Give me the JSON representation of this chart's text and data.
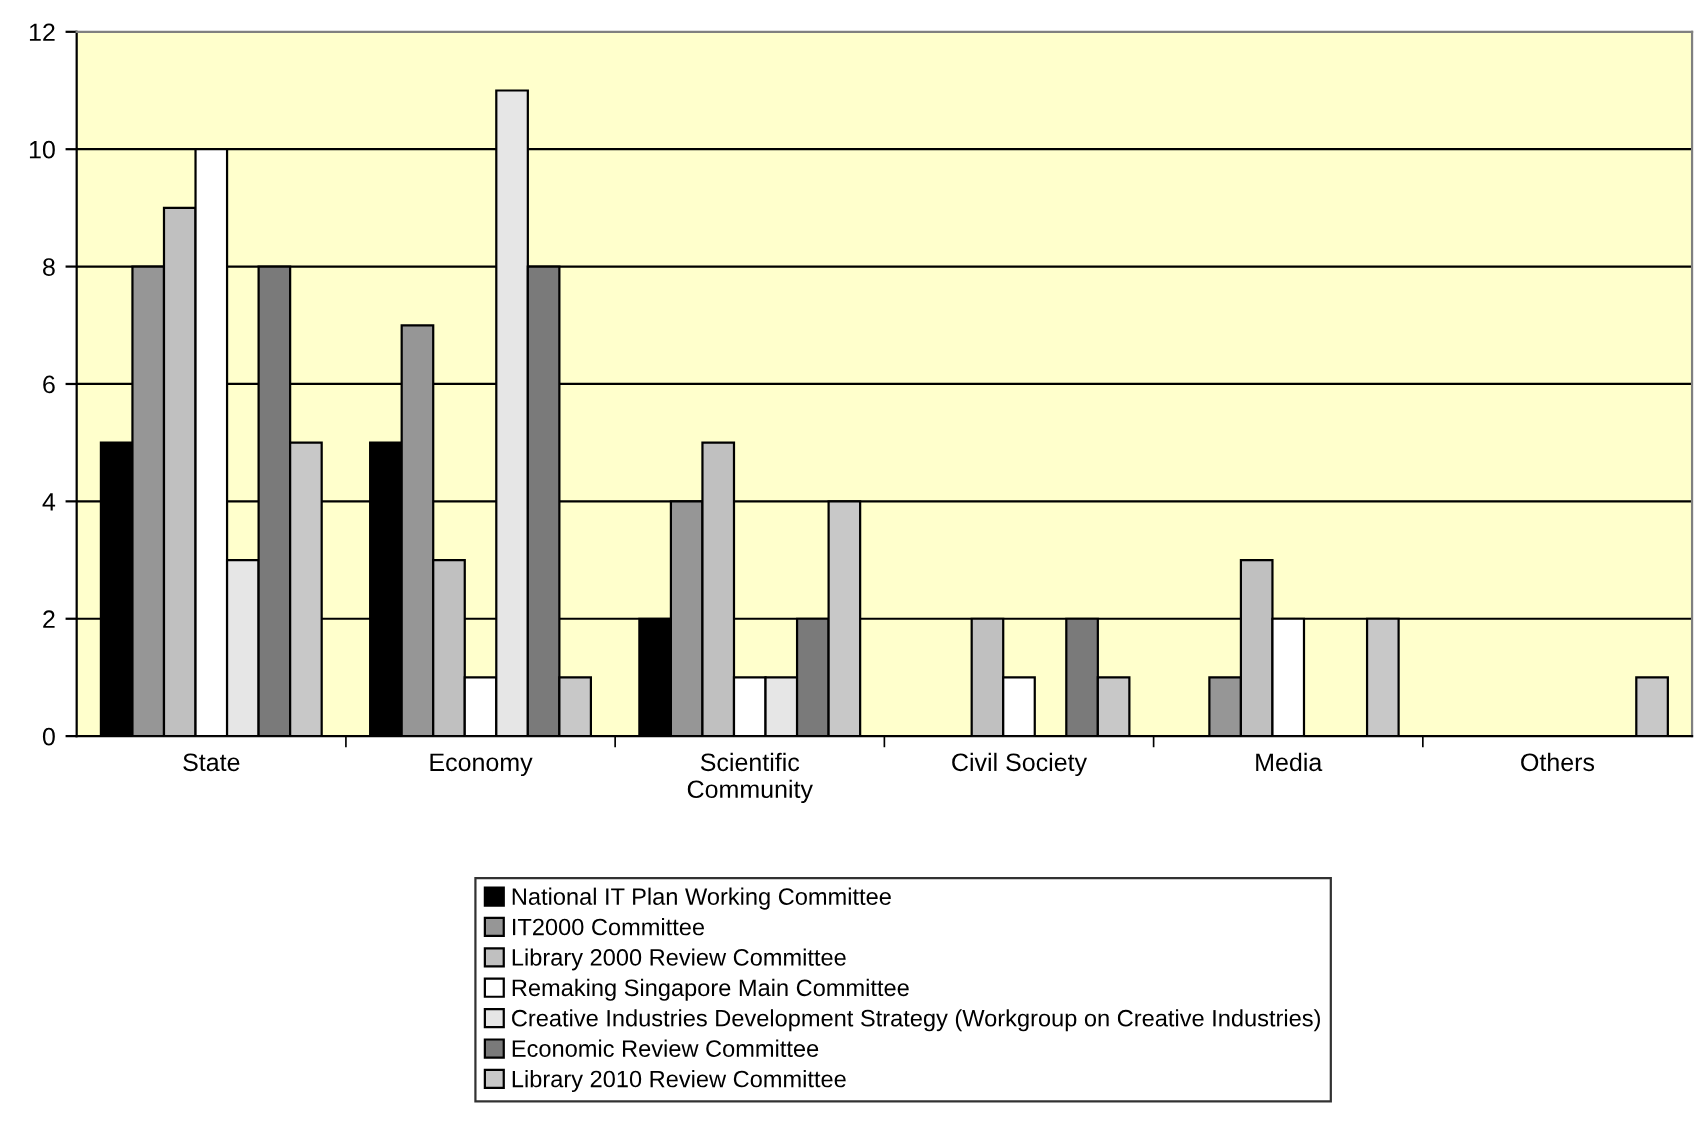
{
  "chart_data": {
    "type": "bar",
    "categories": [
      "State",
      "Economy",
      "Scientific Community",
      "Civil Society",
      "Media",
      "Others"
    ],
    "series": [
      {
        "name": "National IT Plan Working Committee",
        "color": "#000000",
        "values": [
          5,
          5,
          2,
          0,
          0,
          0
        ]
      },
      {
        "name": "IT2000 Committee",
        "color": "#969696",
        "values": [
          8,
          7,
          4,
          0,
          1,
          0
        ]
      },
      {
        "name": "Library 2000 Review Committee",
        "color": "#c0c0c0",
        "values": [
          9,
          3,
          5,
          2,
          3,
          0
        ]
      },
      {
        "name": "Remaking Singapore Main Committee",
        "color": "#ffffff",
        "values": [
          10,
          1,
          1,
          1,
          2,
          0
        ]
      },
      {
        "name": "Creative Industries Development Strategy (Workgroup on Creative Industries)",
        "color": "#e6e6e6",
        "values": [
          3,
          11,
          1,
          0,
          0,
          0
        ]
      },
      {
        "name": "Economic Review Committee",
        "color": "#7a7a7a",
        "values": [
          8,
          8,
          2,
          2,
          0,
          0
        ]
      },
      {
        "name": "Library 2010 Review Committee",
        "color": "#c8c8c8",
        "values": [
          5,
          1,
          4,
          1,
          2,
          1
        ]
      }
    ],
    "ylim": [
      0,
      12
    ],
    "yticks": [
      0,
      2,
      4,
      6,
      8,
      10,
      12
    ],
    "grid": "y",
    "legend": "bottom"
  }
}
